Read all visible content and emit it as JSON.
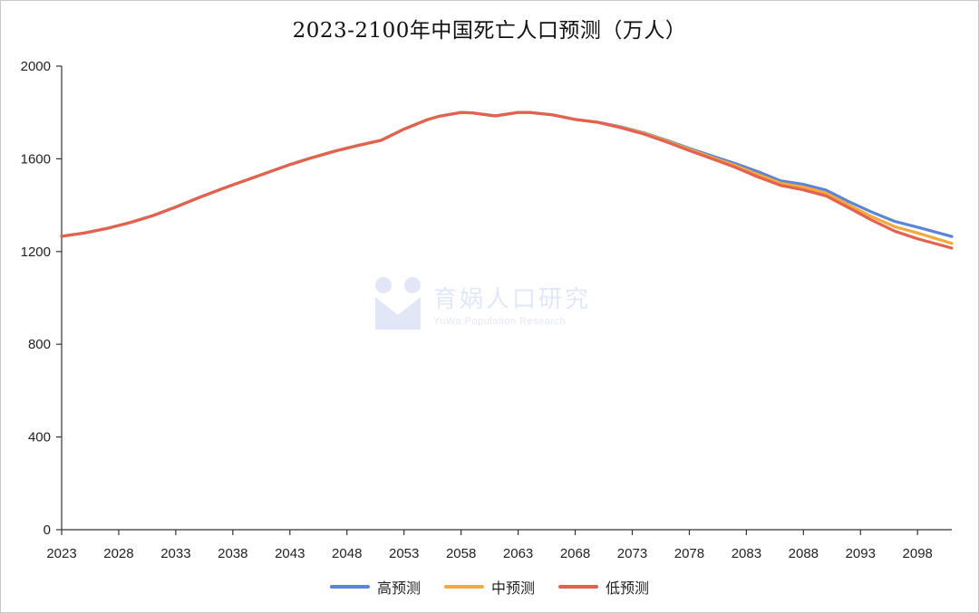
{
  "chart_data": {
    "type": "line",
    "title": "2023-2100年中国死亡人口预测（万人）",
    "xlabel": "",
    "ylabel": "",
    "xlim": [
      2023,
      2101
    ],
    "ylim": [
      0,
      2000
    ],
    "y_ticks": [
      0,
      400,
      800,
      1200,
      1600,
      2000
    ],
    "x_tick_labels": [
      "2023",
      "2028",
      "2033",
      "2038",
      "2043",
      "2048",
      "2053",
      "2058",
      "2063",
      "2068",
      "2073",
      "2078",
      "2083",
      "2088",
      "2093",
      "2098"
    ],
    "legend_position": "bottom",
    "grid": false,
    "x": [
      2023,
      2025,
      2027,
      2029,
      2031,
      2033,
      2035,
      2037,
      2039,
      2041,
      2043,
      2045,
      2047,
      2049,
      2051,
      2053,
      2055,
      2056,
      2058,
      2059,
      2061,
      2063,
      2064,
      2066,
      2068,
      2070,
      2072,
      2074,
      2076,
      2078,
      2080,
      2082,
      2084,
      2086,
      2088,
      2090,
      2092,
      2094,
      2096,
      2098,
      2101
    ],
    "series": [
      {
        "name": "高预测",
        "color": "#5b84d8",
        "values": [
          1266,
          1280,
          1300,
          1325,
          1355,
          1392,
          1432,
          1470,
          1505,
          1540,
          1575,
          1606,
          1634,
          1658,
          1680,
          1728,
          1768,
          1783,
          1800,
          1798,
          1785,
          1800,
          1800,
          1790,
          1770,
          1758,
          1738,
          1712,
          1680,
          1645,
          1612,
          1580,
          1545,
          1505,
          1490,
          1465,
          1415,
          1370,
          1330,
          1305,
          1265
        ]
      },
      {
        "name": "中预测",
        "color": "#f3a93b",
        "values": [
          1266,
          1280,
          1300,
          1325,
          1355,
          1392,
          1432,
          1470,
          1505,
          1540,
          1575,
          1606,
          1634,
          1658,
          1680,
          1728,
          1768,
          1783,
          1800,
          1798,
          1785,
          1800,
          1800,
          1790,
          1770,
          1758,
          1736,
          1710,
          1677,
          1641,
          1606,
          1572,
          1533,
          1495,
          1478,
          1452,
          1400,
          1350,
          1307,
          1280,
          1235
        ]
      },
      {
        "name": "低预测",
        "color": "#e3624f",
        "values": [
          1266,
          1280,
          1300,
          1325,
          1355,
          1392,
          1432,
          1470,
          1505,
          1540,
          1575,
          1606,
          1634,
          1658,
          1680,
          1728,
          1768,
          1783,
          1800,
          1798,
          1785,
          1800,
          1800,
          1790,
          1770,
          1757,
          1734,
          1707,
          1673,
          1636,
          1600,
          1564,
          1522,
          1485,
          1466,
          1440,
          1388,
          1335,
          1288,
          1255,
          1215
        ]
      }
    ]
  },
  "watermark": {
    "name": "育娲人口研究",
    "subtitle": "YuWa Population Research"
  }
}
